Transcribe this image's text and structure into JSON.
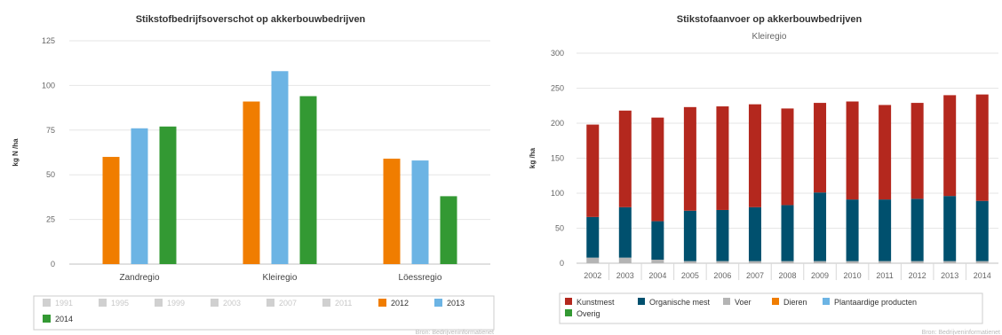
{
  "chart_data": [
    {
      "type": "bar",
      "title": "Stikstofbedrijfsoverschot op akkerbouwbedrijven",
      "ylabel": "kg N /ha",
      "ylim": [
        0,
        125
      ],
      "yticks": [
        "0",
        "25",
        "50",
        "75",
        "100",
        "125"
      ],
      "categories": [
        "Zandregio",
        "Kleiregio",
        "Löessregio"
      ],
      "grid": true,
      "legend_position": "bottom",
      "series": [
        {
          "name": "1991",
          "color": "#cccccc",
          "visible": false,
          "values": [
            null,
            null,
            null
          ]
        },
        {
          "name": "1995",
          "color": "#cccccc",
          "visible": false,
          "values": [
            null,
            null,
            null
          ]
        },
        {
          "name": "1999",
          "color": "#cccccc",
          "visible": false,
          "values": [
            null,
            null,
            null
          ]
        },
        {
          "name": "2003",
          "color": "#cccccc",
          "visible": false,
          "values": [
            null,
            null,
            null
          ]
        },
        {
          "name": "2007",
          "color": "#cccccc",
          "visible": false,
          "values": [
            null,
            null,
            null
          ]
        },
        {
          "name": "2011",
          "color": "#cccccc",
          "visible": false,
          "values": [
            null,
            null,
            null
          ]
        },
        {
          "name": "2012",
          "color": "#f07d00",
          "visible": true,
          "values": [
            60,
            91,
            59
          ]
        },
        {
          "name": "2013",
          "color": "#6cb4e4",
          "visible": true,
          "values": [
            76,
            108,
            58
          ]
        },
        {
          "name": "2014",
          "color": "#339933",
          "visible": true,
          "values": [
            77,
            94,
            38
          ]
        }
      ],
      "credit": "Bron: Bedrijveninformatienet"
    },
    {
      "type": "bar",
      "stacked": true,
      "title": "Stikstofaanvoer op akkerbouwbedrijven",
      "subtitle": "Kleiregio",
      "ylabel": "kg /ha",
      "ylim": [
        0,
        300
      ],
      "yticks": [
        "0",
        "50",
        "100",
        "150",
        "200",
        "250",
        "300"
      ],
      "categories": [
        "2002",
        "2003",
        "2004",
        "2005",
        "2006",
        "2007",
        "2008",
        "2009",
        "2010",
        "2011",
        "2012",
        "2013",
        "2014"
      ],
      "grid": true,
      "legend_position": "bottom",
      "series": [
        {
          "name": "Overig",
          "color": "#339933",
          "values": [
            0,
            0,
            0,
            0,
            0,
            0,
            0,
            0,
            0,
            0,
            0,
            0,
            0
          ]
        },
        {
          "name": "Plantaardige producten",
          "color": "#6cb4e4",
          "values": [
            0,
            0,
            0,
            0,
            0,
            0,
            0,
            0,
            0,
            0,
            0,
            0,
            0
          ]
        },
        {
          "name": "Dieren",
          "color": "#f07d00",
          "values": [
            0,
            0,
            0,
            0,
            0,
            0,
            0,
            0,
            0,
            0,
            0,
            0,
            0
          ]
        },
        {
          "name": "Voer",
          "color": "#b4b4b4",
          "values": [
            8,
            8,
            5,
            3,
            3,
            3,
            3,
            3,
            3,
            3,
            3,
            3,
            3
          ]
        },
        {
          "name": "Organische mest",
          "color": "#00506e",
          "values": [
            58,
            72,
            55,
            72,
            73,
            77,
            80,
            98,
            88,
            88,
            89,
            93,
            86
          ]
        },
        {
          "name": "Kunstmest",
          "color": "#b4281e",
          "values": [
            132,
            138,
            148,
            148,
            148,
            147,
            138,
            128,
            140,
            135,
            137,
            144,
            152
          ]
        }
      ],
      "legend_order": [
        "Kunstmest",
        "Organische mest",
        "Voer",
        "Dieren",
        "Plantaardige producten",
        "Overig"
      ],
      "credit": "Bron: Bedrijveninformatienet"
    }
  ]
}
